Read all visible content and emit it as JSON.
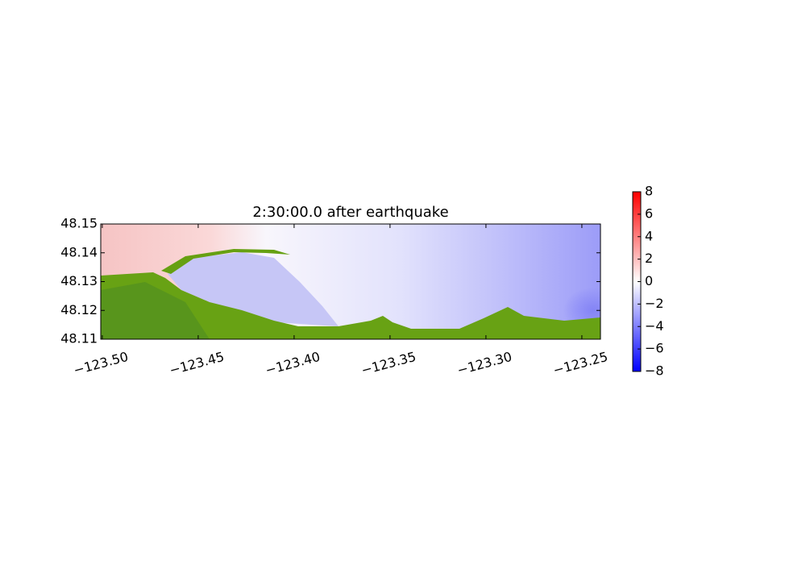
{
  "chart_data": {
    "type": "heatmap",
    "title": "2:30:00.0 after earthquake",
    "xlim": [
      -123.5008,
      -123.2403
    ],
    "ylim": [
      48.11,
      48.15
    ],
    "xticks": [
      {
        "value": -123.5,
        "label": "−123.50"
      },
      {
        "value": -123.45,
        "label": "−123.45"
      },
      {
        "value": -123.4,
        "label": "−123.40"
      },
      {
        "value": -123.35,
        "label": "−123.35"
      },
      {
        "value": -123.3,
        "label": "−123.30"
      },
      {
        "value": -123.25,
        "label": "−123.25"
      }
    ],
    "yticks": [
      48.11,
      48.12,
      48.13,
      48.14,
      48.15
    ],
    "colorbar": {
      "lim": [
        -8,
        8
      ],
      "ticks": [
        8,
        6,
        4,
        2,
        0,
        {
          "value": -2,
          "label": "−2"
        },
        {
          "value": -4,
          "label": "−4"
        },
        {
          "value": -6,
          "label": "−6"
        },
        {
          "value": -8,
          "label": "−8"
        }
      ]
    }
  }
}
